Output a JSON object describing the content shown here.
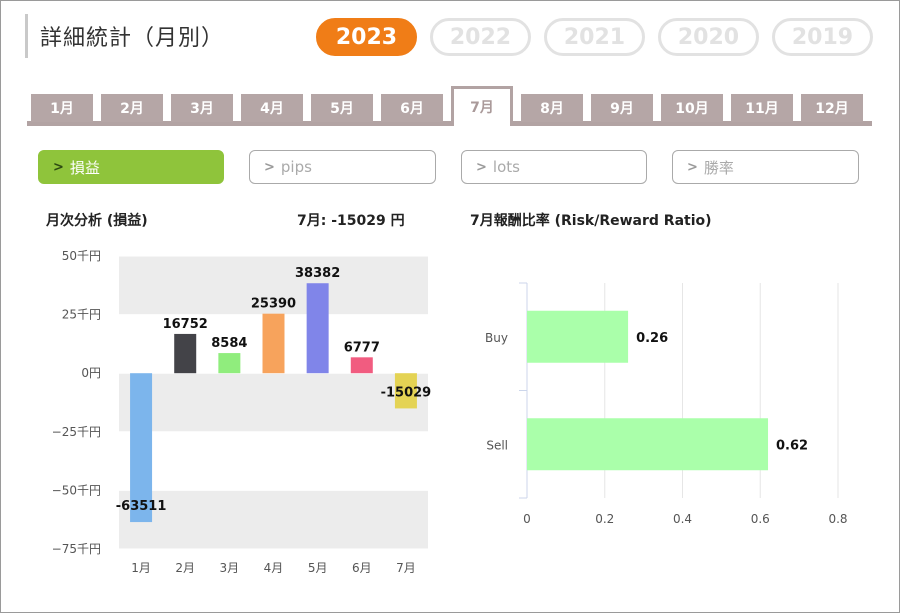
{
  "header": {
    "title": "詳細統計（月別）"
  },
  "years": [
    {
      "label": "2023",
      "active": true
    },
    {
      "label": "2022",
      "active": false
    },
    {
      "label": "2021",
      "active": false
    },
    {
      "label": "2020",
      "active": false
    },
    {
      "label": "2019",
      "active": false
    }
  ],
  "months": [
    {
      "label": "1月",
      "active": false
    },
    {
      "label": "2月",
      "active": false
    },
    {
      "label": "3月",
      "active": false
    },
    {
      "label": "4月",
      "active": false
    },
    {
      "label": "5月",
      "active": false
    },
    {
      "label": "6月",
      "active": false
    },
    {
      "label": "7月",
      "active": true
    },
    {
      "label": "8月",
      "active": false
    },
    {
      "label": "9月",
      "active": false
    },
    {
      "label": "10月",
      "active": false
    },
    {
      "label": "11月",
      "active": false
    },
    {
      "label": "12月",
      "active": false
    }
  ],
  "filters": [
    {
      "label": "損益",
      "active": true,
      "icon": "chevron-right-icon"
    },
    {
      "label": "pips",
      "active": false,
      "icon": "chevron-right-icon"
    },
    {
      "label": "lots",
      "active": false,
      "icon": "chevron-right-icon"
    },
    {
      "label": "勝率",
      "active": false,
      "icon": "chevron-right-icon"
    }
  ],
  "summary": {
    "left_title": "月次分析 (損益)",
    "month_total": "7月:  -15029 円",
    "right_title": "7月報酬比率 (Risk/Reward Ratio)"
  },
  "colors": {
    "accent": "#f07d17",
    "active_filter": "#8fc43b",
    "tab": "#b5a6a6",
    "ratio_bar": "#aaffaa"
  },
  "chart_data": [
    {
      "type": "bar",
      "categories": [
        "1月",
        "2月",
        "3月",
        "4月",
        "5月",
        "6月",
        "7月"
      ],
      "values": [
        -63511,
        16752,
        8584,
        25390,
        38382,
        6777,
        -15029
      ],
      "data_labels": [
        "-63511",
        "16752",
        "8584",
        "25390",
        "38382",
        "6777",
        "-15029"
      ],
      "colors": [
        "#7cb5ec",
        "#434348",
        "#90ed7d",
        "#f7a35c",
        "#8085e9",
        "#f15c80",
        "#e4d354"
      ],
      "y_ticks": [
        {
          "value": 50000,
          "label": "50千円"
        },
        {
          "value": 25000,
          "label": "25千円"
        },
        {
          "value": 0,
          "label": "0円"
        },
        {
          "value": -25000,
          "label": "−25千円"
        },
        {
          "value": -50000,
          "label": "−50千円"
        },
        {
          "value": -75000,
          "label": "−75千円"
        }
      ],
      "ylim": [
        -75000,
        50000
      ],
      "grid": "alternating bands"
    },
    {
      "type": "bar",
      "orientation": "horizontal",
      "categories": [
        "Buy",
        "Sell"
      ],
      "values": [
        0.26,
        0.62
      ],
      "data_labels": [
        "0.26",
        "0.62"
      ],
      "x_ticks": [
        "0",
        "0.2",
        "0.4",
        "0.6",
        "0.8"
      ],
      "xlim": [
        0,
        0.8
      ],
      "grid": true
    }
  ]
}
